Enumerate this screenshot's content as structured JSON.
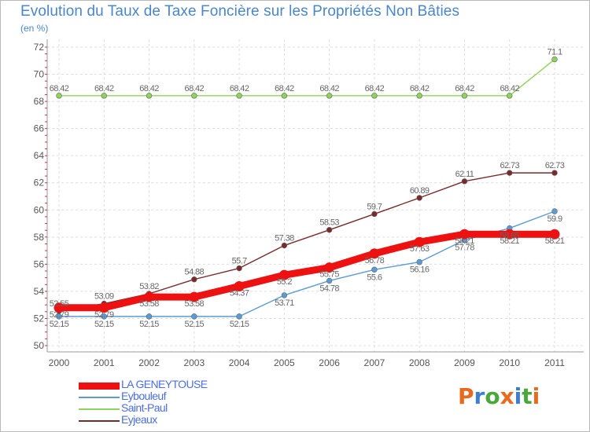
{
  "header": {
    "title": "Evolution du Taux de Taxe Foncière sur les Propriétés Non Bâties",
    "unit": "(en %)"
  },
  "logo": {
    "text": "Proxiti",
    "colors": [
      "#e86a1e",
      "#3a7fd0",
      "#49a83b",
      "#e86a1e",
      "#3a7fd0",
      "#49a83b",
      "#e86a1e"
    ]
  },
  "chart_data": {
    "type": "line",
    "title": "Evolution du Taux de Taxe Foncière sur les Propriétés Non Bâties",
    "ylabel": "(en %)",
    "xlabel": "",
    "ylim": [
      50,
      72
    ],
    "yticks": [
      50,
      52,
      54,
      56,
      58,
      60,
      62,
      64,
      66,
      68,
      70,
      72
    ],
    "x": [
      "2000",
      "2001",
      "2002",
      "2003",
      "2004",
      "2005",
      "2006",
      "2007",
      "2008",
      "2009",
      "2010",
      "2011"
    ],
    "grid": true,
    "legend_position": "bottom-left",
    "series": [
      {
        "name": "LA GENEYTOUSE",
        "color": "#ee1111",
        "values": [
          52.79,
          52.79,
          53.58,
          53.58,
          54.37,
          55.2,
          55.75,
          56.78,
          57.63,
          58.21,
          58.21,
          58.21
        ],
        "labels": [
          "52.79",
          "52.79",
          "53.58",
          "53.58",
          "54.37",
          "55.2",
          "55.75",
          "56.78",
          "57.63",
          "58.21",
          "58.21",
          "58.21"
        ]
      },
      {
        "name": "Eybouleuf",
        "color": "#5b9bd5",
        "values": [
          52.15,
          52.15,
          52.15,
          52.15,
          52.15,
          53.71,
          54.78,
          55.6,
          56.16,
          57.78,
          58.65,
          59.9
        ],
        "labels": [
          "52.15",
          "52.15",
          "52.15",
          "52.15",
          "52.15",
          "53.71",
          "54.78",
          "55.6",
          "56.16",
          "57.78",
          "58.65",
          "59.9"
        ]
      },
      {
        "name": "Saint-Paul",
        "color": "#8fd45a",
        "values": [
          68.42,
          68.42,
          68.42,
          68.42,
          68.42,
          68.42,
          68.42,
          68.42,
          68.42,
          68.42,
          68.42,
          71.1
        ],
        "labels": [
          "68.42",
          "68.42",
          "68.42",
          "68.42",
          "68.42",
          "68.42",
          "68.42",
          "68.42",
          "68.42",
          "68.42",
          "68.42",
          "71.1"
        ]
      },
      {
        "name": "Eyjeaux",
        "color": "#7a2a2a",
        "values": [
          52.55,
          53.09,
          53.82,
          54.88,
          55.7,
          57.38,
          58.53,
          59.7,
          60.89,
          62.11,
          62.73,
          62.73
        ],
        "labels": [
          "52.55",
          "53.09",
          "53.82",
          "54.88",
          "55.7",
          "57.38",
          "58.53",
          "59.7",
          "60.89",
          "62.11",
          "62.73",
          "62.73"
        ]
      }
    ]
  }
}
